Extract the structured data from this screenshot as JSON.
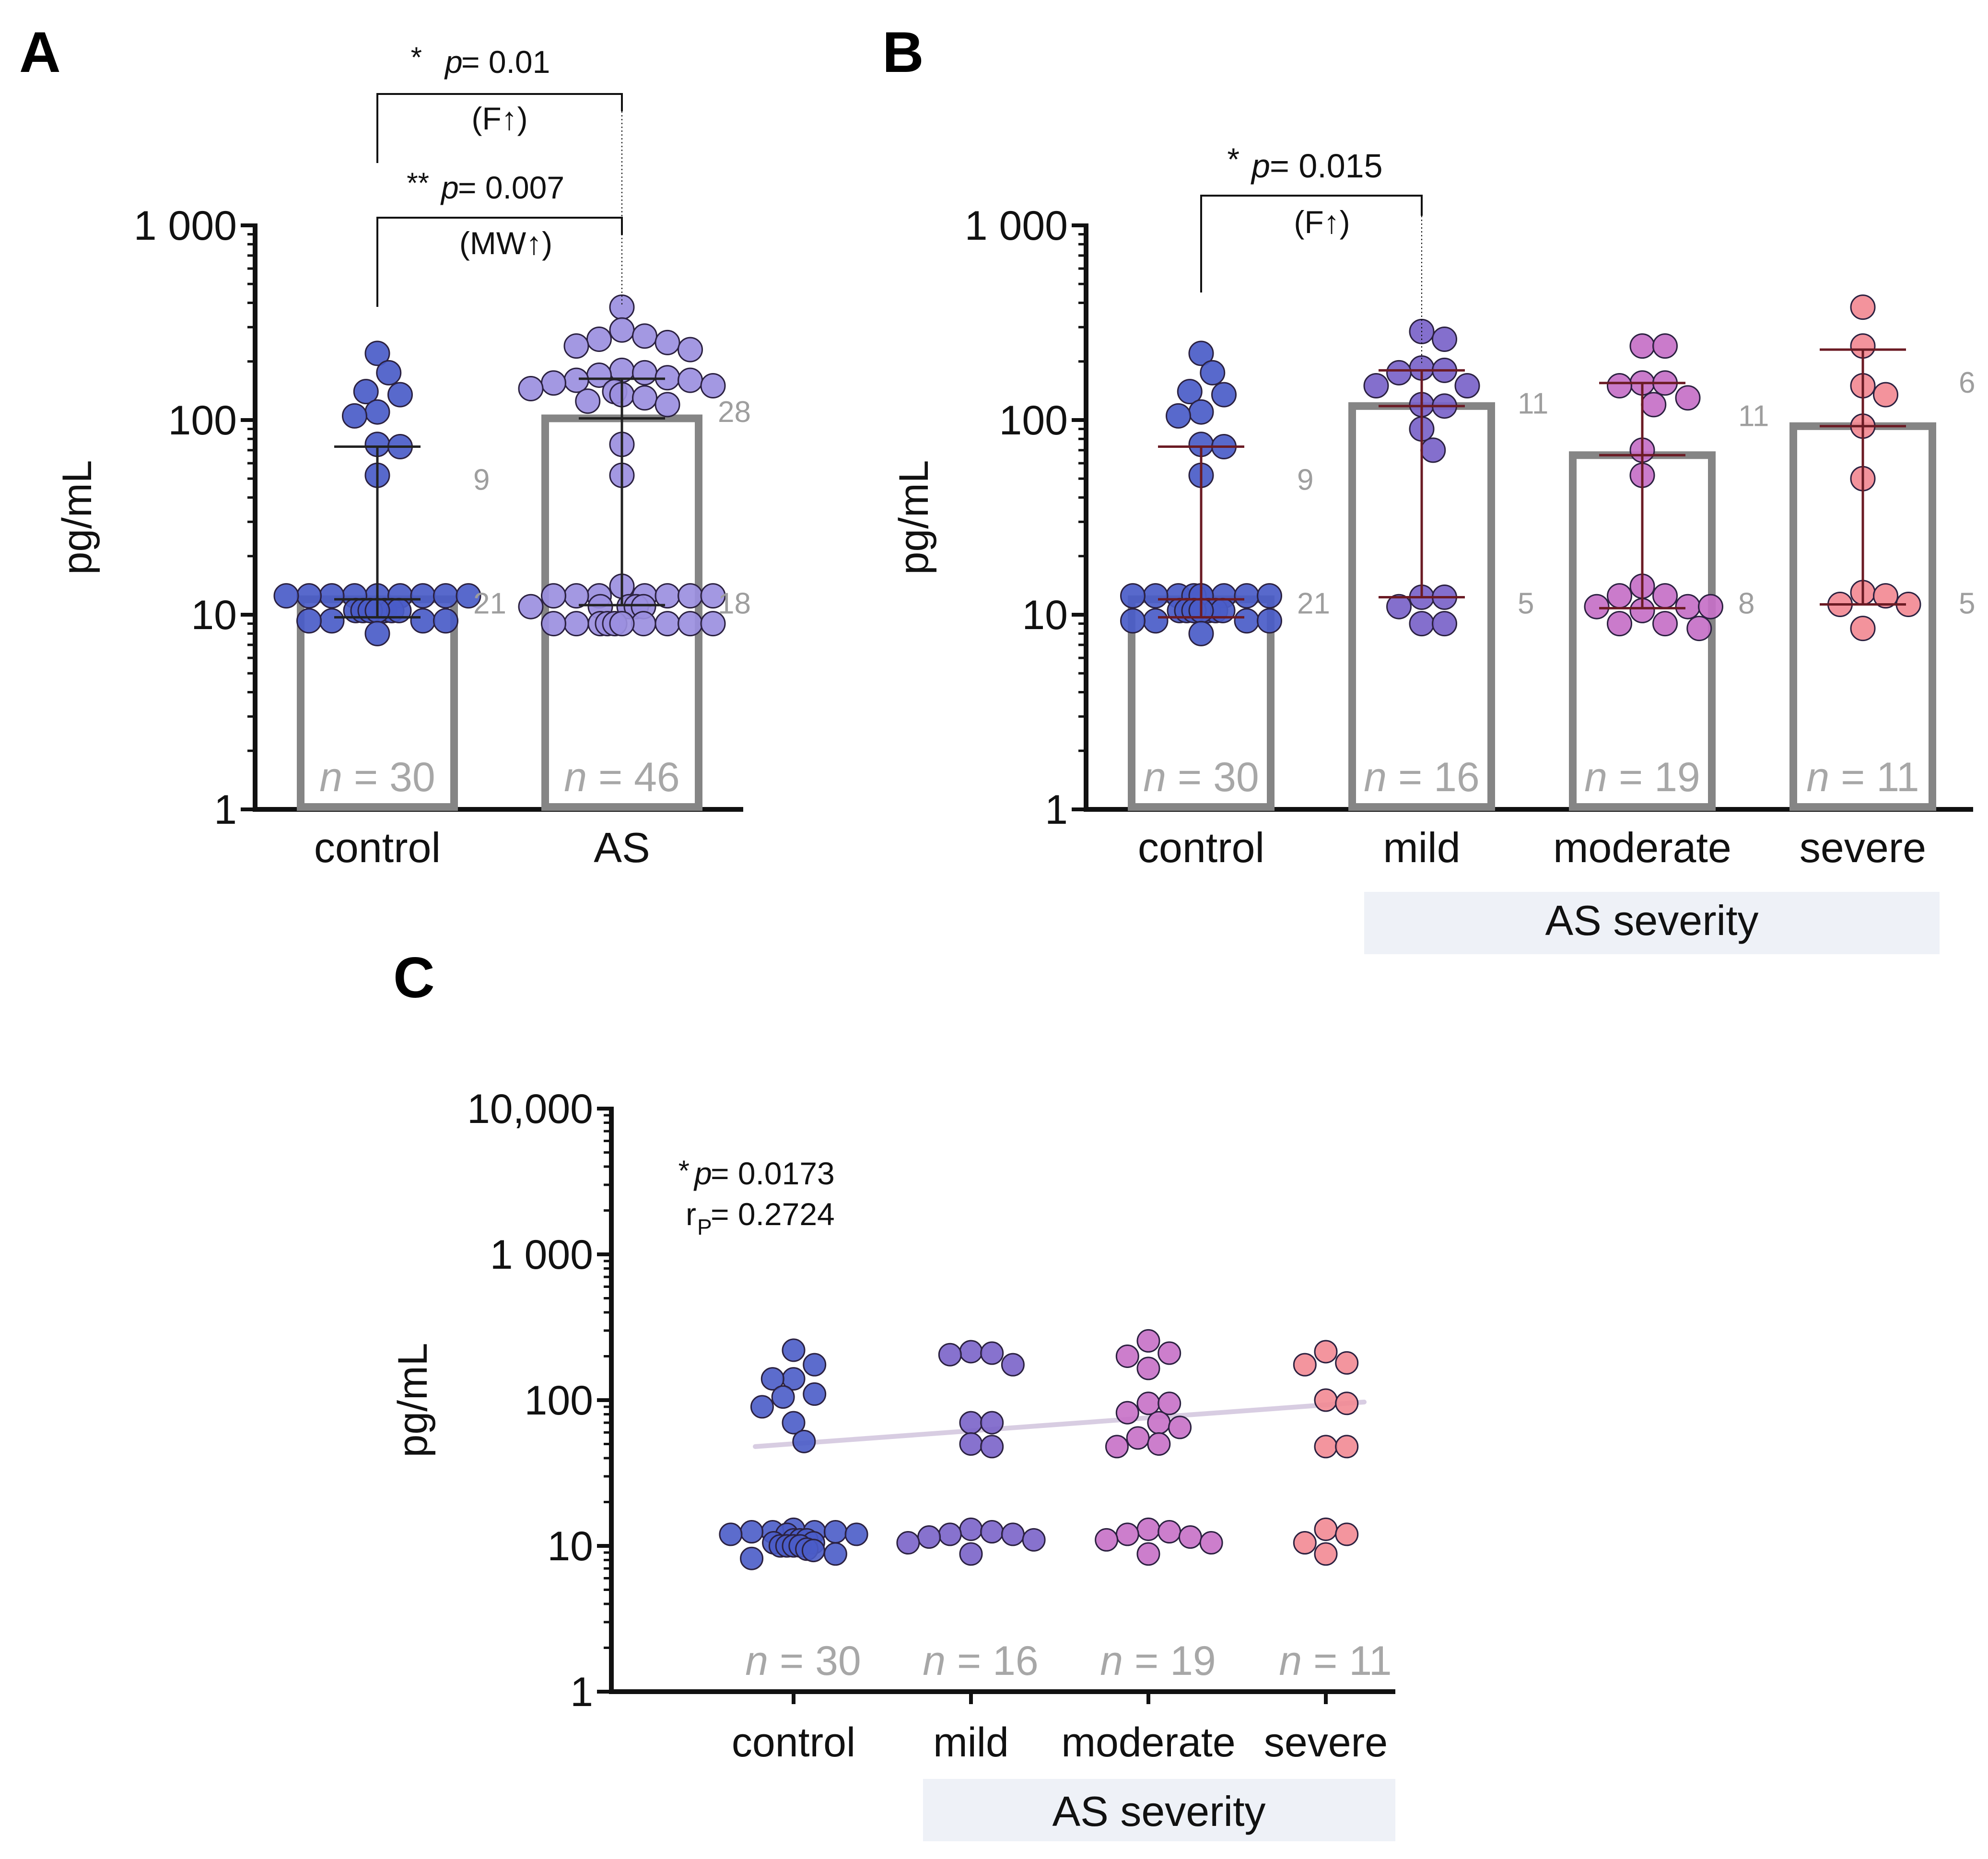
{
  "colors": {
    "axis": "#111111",
    "bar": "#858585",
    "whisker": "#6b1b24",
    "count_label": "#9e9e9e",
    "n_label": "#a7a7a7",
    "severity_band": "#eef1f7",
    "trend_line": "#d8cde2",
    "point_stroke": "#2b2140",
    "control": "#4a5cc8",
    "as": "#9b8fe0",
    "mild": "#7a63c9",
    "moderate": "#c670c7",
    "severe": "#f28a94"
  },
  "chart_data": [
    {
      "panel": "A",
      "type": "bar",
      "yscale": "log",
      "ylabel": "pg/mL",
      "ylim": [
        1,
        1000
      ],
      "y_ticks": [
        {
          "value": 1,
          "label": "1"
        },
        {
          "value": 10,
          "label": "10"
        },
        {
          "value": 100,
          "label": "100"
        },
        {
          "value": 1000,
          "label": "1 000"
        }
      ],
      "categories": [
        "control",
        "AS"
      ],
      "bars": [
        {
          "category": "control",
          "median": 12,
          "iqr": [
            9.7,
            73
          ],
          "n_label": "n = 30",
          "n": 30,
          "upper_count": "9",
          "lower_count": "21",
          "color_key": "control"
        },
        {
          "category": "AS",
          "median": 102,
          "iqr": [
            11.2,
            163
          ],
          "n_label": "n = 46",
          "n": 46,
          "upper_count": "28",
          "lower_count": "18",
          "color_key": "as"
        }
      ],
      "points": [
        {
          "category": "control",
          "values": [
            220,
            175,
            140,
            135,
            110,
            105,
            75,
            73,
            52,
            12.5,
            12.5,
            12.5,
            12.5,
            12.5,
            12.5,
            12.5,
            12.5,
            12.5,
            10.5,
            10.5,
            10.5,
            10.5,
            10.5,
            10.5,
            10.5,
            9.3,
            9.3,
            9.3,
            9.3,
            8
          ]
        },
        {
          "category": "AS",
          "values": [
            380,
            290,
            270,
            260,
            250,
            240,
            230,
            180,
            175,
            170,
            165,
            160,
            160,
            155,
            150,
            145,
            140,
            135,
            130,
            125,
            120,
            75,
            52,
            14,
            12.5,
            12.5,
            12.5,
            12.5,
            12.5,
            12.5,
            12.5,
            11,
            11,
            11,
            11,
            11,
            9,
            9,
            9,
            9,
            9,
            9,
            9,
            9,
            9,
            9
          ]
        }
      ],
      "comparisons": [
        {
          "stars": "*",
          "p_label": "p",
          "p_text": " = 0.01",
          "test": "(F↑)"
        },
        {
          "stars": "**",
          "p_label": "p",
          "p_text": " = 0.007",
          "test": "(MW↑)"
        }
      ]
    },
    {
      "panel": "B",
      "type": "bar",
      "yscale": "log",
      "ylabel": "pg/mL",
      "ylim": [
        1,
        1000
      ],
      "y_ticks": [
        {
          "value": 1,
          "label": "1"
        },
        {
          "value": 10,
          "label": "10"
        },
        {
          "value": 100,
          "label": "100"
        },
        {
          "value": 1000,
          "label": "1 000"
        }
      ],
      "categories": [
        "control",
        "mild",
        "moderate",
        "severe"
      ],
      "group_label": "AS severity",
      "bars": [
        {
          "category": "control",
          "median": 12,
          "iqr": [
            9.7,
            73
          ],
          "n_label": "n = 30",
          "n": 30,
          "upper_count": "9",
          "lower_count": "21",
          "color_key": "control"
        },
        {
          "category": "mild",
          "median": 118,
          "iqr": [
            12.3,
            180
          ],
          "n_label": "n = 16",
          "n": 16,
          "upper_count": "11",
          "lower_count": "5",
          "color_key": "mild"
        },
        {
          "category": "moderate",
          "median": 66,
          "iqr": [
            10.8,
            155
          ],
          "n_label": "n = 19",
          "n": 19,
          "upper_count": "11",
          "lower_count": "8",
          "color_key": "moderate"
        },
        {
          "category": "severe",
          "median": 93,
          "iqr": [
            11.3,
            230
          ],
          "n_label": "n = 11",
          "n": 11,
          "upper_count": "6",
          "lower_count": "5",
          "color_key": "severe"
        }
      ],
      "points": [
        {
          "category": "control",
          "values": [
            220,
            175,
            140,
            135,
            110,
            105,
            75,
            73,
            52,
            12.5,
            12.5,
            12.5,
            12.5,
            12.5,
            12.5,
            12.5,
            12.5,
            12.5,
            10.5,
            10.5,
            10.5,
            10.5,
            10.5,
            10.5,
            10.5,
            9.3,
            9.3,
            9.3,
            9.3,
            8
          ]
        },
        {
          "category": "mild",
          "values": [
            285,
            260,
            185,
            180,
            175,
            150,
            150,
            120,
            118,
            90,
            70,
            12.3,
            12.3,
            11,
            9,
            9
          ]
        },
        {
          "category": "moderate",
          "values": [
            240,
            240,
            155,
            155,
            150,
            130,
            120,
            70,
            52,
            14,
            12.5,
            12.5,
            11,
            11,
            11,
            10.5,
            9,
            9,
            8.5
          ]
        },
        {
          "category": "severe",
          "values": [
            380,
            240,
            150,
            135,
            93,
            50,
            13,
            12.5,
            11.3,
            11.3,
            8.5
          ]
        }
      ],
      "comparisons": [
        {
          "stars": "*",
          "p_label": "p",
          "p_text": " = 0.015",
          "test": "(F↑)"
        }
      ]
    },
    {
      "panel": "C",
      "type": "scatter",
      "yscale": "log",
      "ylabel": "pg/mL",
      "ylim": [
        1,
        10000
      ],
      "y_ticks": [
        {
          "value": 1,
          "label": "1"
        },
        {
          "value": 10,
          "label": "10"
        },
        {
          "value": 100,
          "label": "100"
        },
        {
          "value": 1000,
          "label": "1 000"
        },
        {
          "value": 10000,
          "label": "10,000"
        }
      ],
      "categories": [
        "control",
        "mild",
        "moderate",
        "severe"
      ],
      "group_label": "AS severity",
      "n_labels": [
        "n = 30",
        "n = 16",
        "n = 19",
        "n = 11"
      ],
      "trend_line": {
        "from": [
          0,
          48
        ],
        "to": [
          3,
          97
        ]
      },
      "stats": {
        "p_stars": "*",
        "p_label": "p",
        "p_value": " =  0.0173",
        "r_label": "r",
        "r_sub": "P",
        "r_value": " =  0.2724"
      },
      "points": [
        {
          "category": "control",
          "values": [
            220,
            175,
            140,
            140,
            110,
            105,
            90,
            70,
            52,
            13,
            12.5,
            12.5,
            12.5,
            12.5,
            12,
            12,
            12,
            11,
            11,
            11,
            10.5,
            10.5,
            10,
            10,
            10,
            10,
            9.5,
            9.3,
            8.8,
            8.2
          ]
        },
        {
          "category": "mild",
          "values": [
            215,
            210,
            205,
            175,
            70,
            70,
            50,
            48,
            13,
            12.5,
            12,
            12,
            11.5,
            11,
            10.5,
            8.8
          ]
        },
        {
          "category": "moderate",
          "values": [
            255,
            210,
            200,
            165,
            95,
            95,
            82,
            70,
            65,
            55,
            50,
            48,
            13,
            12.5,
            12,
            11.5,
            11,
            10.5,
            8.8
          ]
        },
        {
          "category": "severe",
          "values": [
            215,
            180,
            175,
            100,
            95,
            48,
            48,
            13,
            12,
            10.5,
            8.8
          ]
        }
      ]
    }
  ],
  "panel_letters": [
    "A",
    "B",
    "C"
  ]
}
